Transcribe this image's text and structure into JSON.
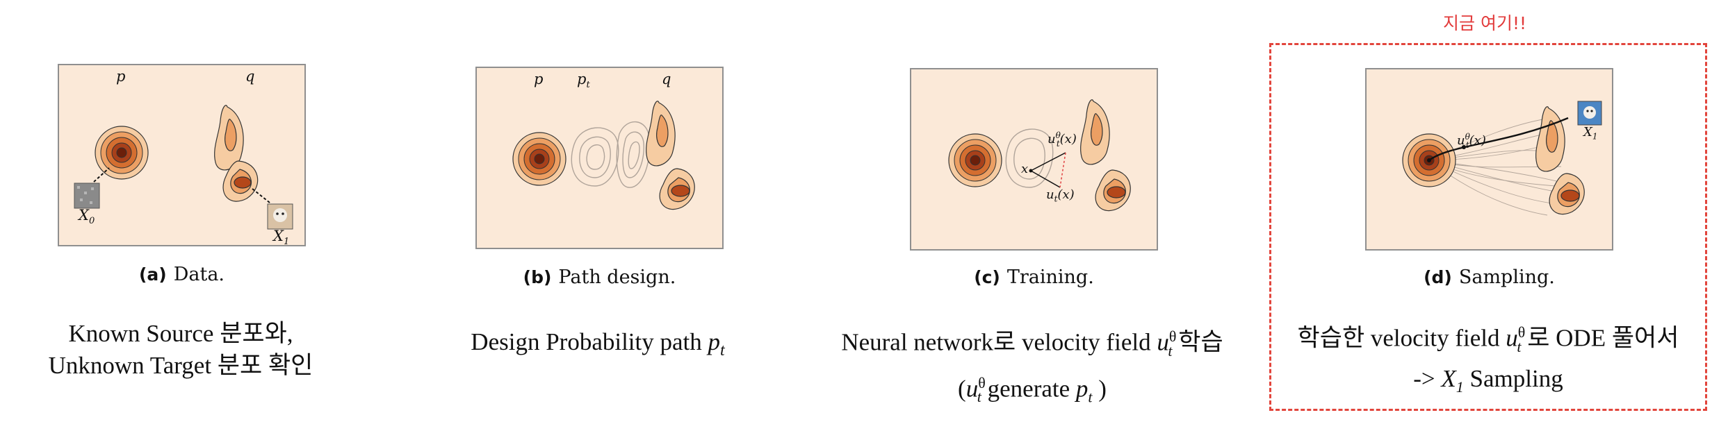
{
  "panel_a": {
    "labels": {
      "p": "p",
      "q": "q",
      "x0": "X",
      "x0_sub": "0",
      "x1": "X",
      "x1_sub": "1"
    },
    "caption_tag": "(a)",
    "caption": "Data.",
    "desc_line1": "Known Source 분포와,",
    "desc_line2": "Unknown Target 분포 확인"
  },
  "panel_b": {
    "labels": {
      "p": "p",
      "pt": "p",
      "pt_sub": "t",
      "q": "q"
    },
    "caption_tag": "(b)",
    "caption": "Path design.",
    "desc_prefix": "Design Probability path ",
    "desc_var": "p",
    "desc_sub": "t"
  },
  "panel_c": {
    "labels": {
      "ut_theta": "u",
      "ut_theta_sup": "θ",
      "ut_theta_sub": "t",
      "ut_theta_arg": "(x)",
      "x": "x",
      "ut": "u",
      "ut_sub": "t",
      "ut_arg": "(x)"
    },
    "caption_tag": "(c)",
    "caption": "Training.",
    "desc_line1_prefix": "Neural network로 velocity field ",
    "desc_var": "u",
    "desc_sup": "θ",
    "desc_sub": "t",
    "desc_line1_suffix": " 학습",
    "desc_line2_open": "(",
    "desc_line2_mid": " generate  ",
    "desc_line2_pvar": "p",
    "desc_line2_psub": "t",
    "desc_line2_close": " )"
  },
  "panel_d": {
    "labels": {
      "ut_theta": "u",
      "ut_theta_sup": "θ",
      "ut_theta_sub": "t",
      "ut_theta_arg": "(x)",
      "x1": "X",
      "x1_sub": "1"
    },
    "caption_tag": "(d)",
    "caption": "Sampling.",
    "desc_line1_prefix": "학습한 velocity field ",
    "desc_var": "u",
    "desc_sup": "θ",
    "desc_sub": "t",
    "desc_line1_suffix": " 로 ODE 풀어서",
    "desc_line2_prefix": "-> ",
    "desc_line2_var": "X",
    "desc_line2_sub": "1",
    "desc_line2_suffix": " Sampling"
  },
  "annotation": {
    "note": "지금 여기!!",
    "highlight_color": "#e2453c"
  },
  "colors": {
    "panel_bg": "#fbe9d8",
    "dark": "#6b1f0a",
    "mid": "#c85a1e",
    "light": "#f2b57c"
  }
}
